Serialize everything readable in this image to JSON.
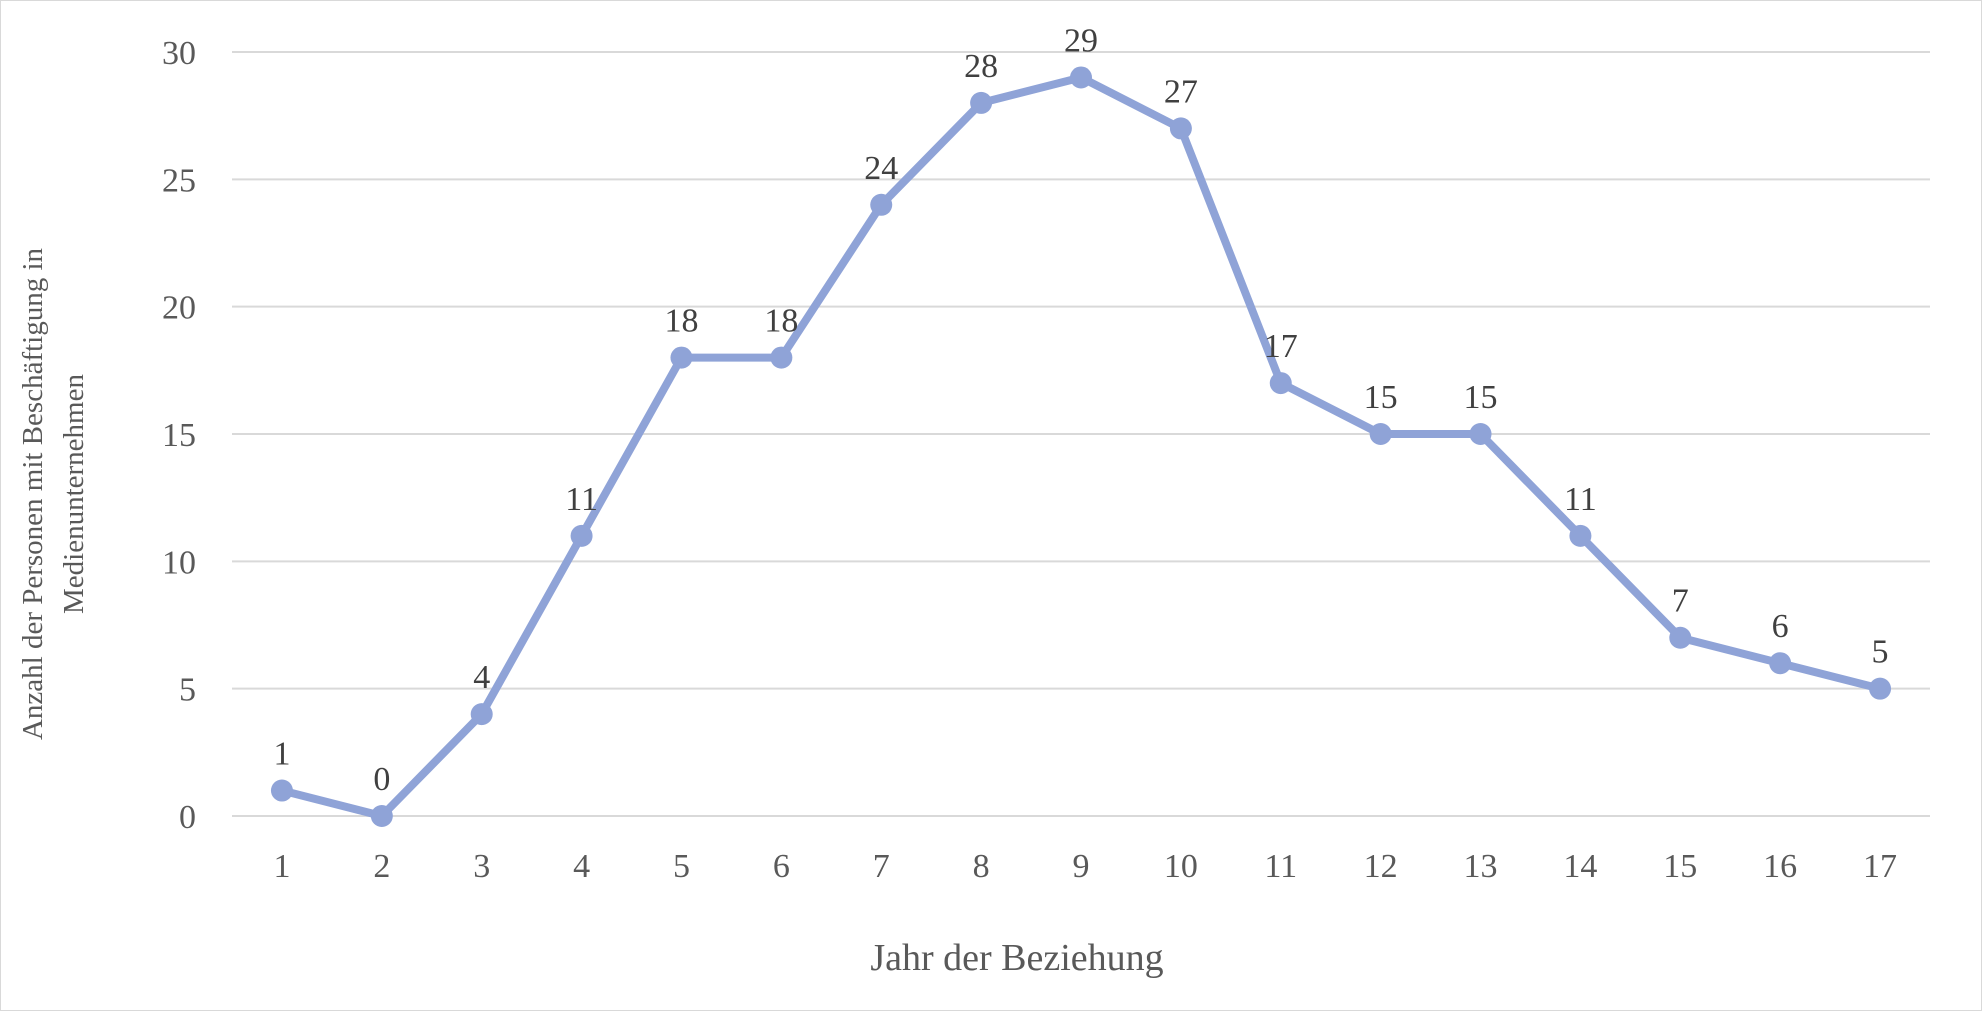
{
  "chart_data": {
    "type": "line",
    "x": [
      1,
      2,
      3,
      4,
      5,
      6,
      7,
      8,
      9,
      10,
      11,
      12,
      13,
      14,
      15,
      16,
      17
    ],
    "values": [
      1,
      0,
      4,
      11,
      18,
      18,
      24,
      28,
      29,
      27,
      17,
      15,
      15,
      11,
      7,
      6,
      5
    ],
    "xlabel": "Jahr der Beziehung",
    "ylabel_lines": [
      "Anzahl der Personen mit Beschäftigung in",
      "Medienunternehmen"
    ],
    "ylim": [
      0,
      30
    ],
    "yticks": [
      0,
      5,
      10,
      15,
      20,
      25,
      30
    ],
    "grid": "horizontal",
    "legend": "none",
    "data_labels": true,
    "line_color": "#8FA3D7",
    "grid_color": "#d9d9d9"
  }
}
